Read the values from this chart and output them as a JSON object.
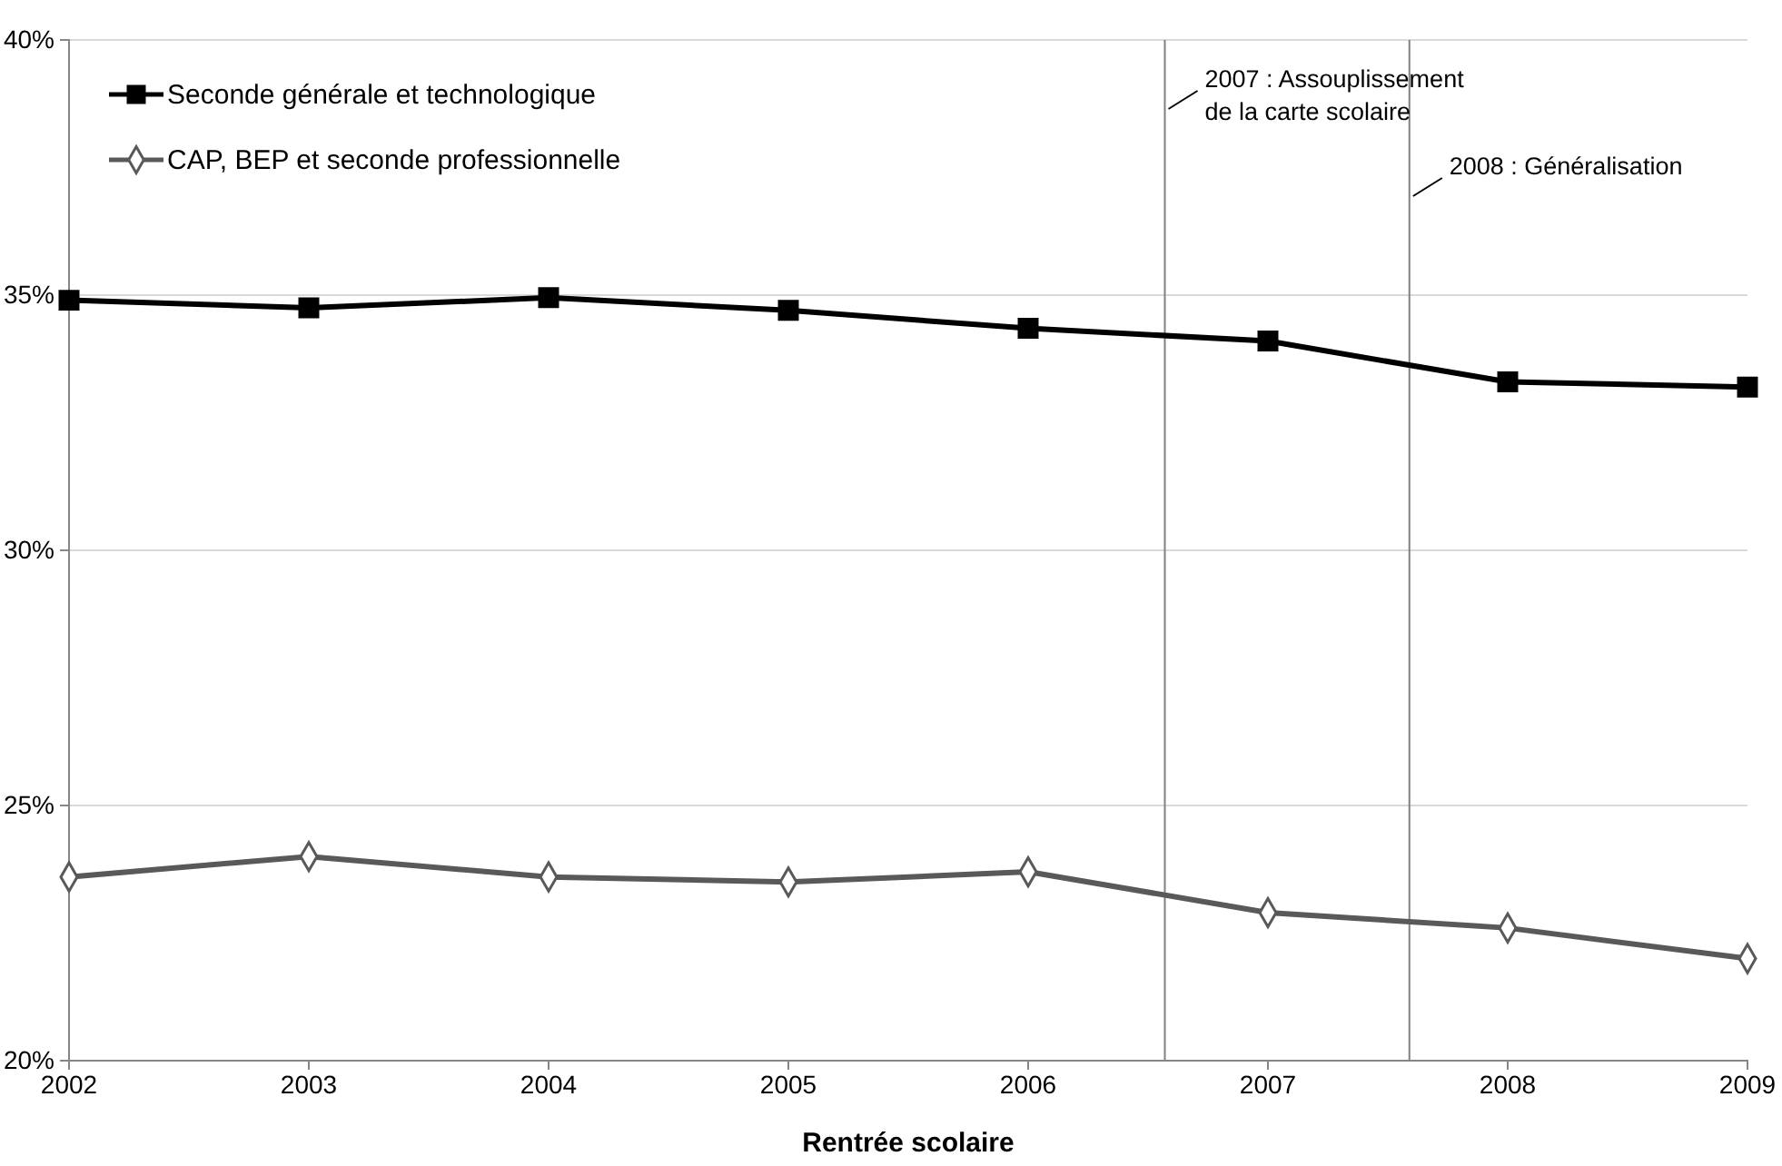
{
  "chart_data": {
    "type": "line",
    "xlabel": "Rentrée scolaire",
    "x": [
      2002,
      2003,
      2004,
      2005,
      2006,
      2007,
      2008,
      2009
    ],
    "xlim": [
      2002,
      2009
    ],
    "xticks": [
      2002,
      2003,
      2004,
      2005,
      2006,
      2007,
      2008,
      2009
    ],
    "ylim": [
      20,
      40
    ],
    "yticks": [
      {
        "value": 20,
        "label": "20%"
      },
      {
        "value": 25,
        "label": "25%"
      },
      {
        "value": 30,
        "label": "30%"
      },
      {
        "value": 35,
        "label": "35%"
      },
      {
        "value": 40,
        "label": "40%"
      }
    ],
    "grid": "y",
    "legend": "top left",
    "series": [
      {
        "name": "Seconde générale et technologique",
        "color": "#000000",
        "marker": "square",
        "values": [
          34.9,
          34.75,
          34.95,
          34.7,
          34.35,
          34.1,
          33.3,
          33.2
        ]
      },
      {
        "name": "CAP, BEP et seconde professionnelle",
        "color": "#595959",
        "marker": "diamond",
        "values": [
          23.6,
          24.0,
          23.6,
          23.5,
          23.7,
          22.9,
          22.6,
          22.0
        ]
      }
    ],
    "ref_lines": [
      {
        "axis": "x",
        "value": 2006.57,
        "label": "2007 : Assouplissement de la carte scolaire",
        "color": "#808080"
      },
      {
        "axis": "x",
        "value": 2007.59,
        "label": "2008 : Généralisation",
        "color": "#808080"
      }
    ]
  }
}
